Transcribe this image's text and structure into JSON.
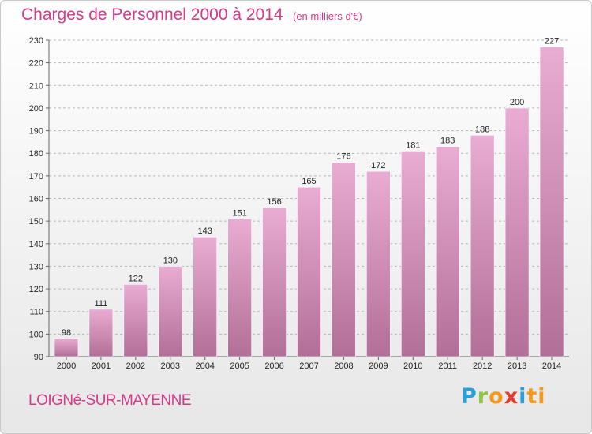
{
  "header": {
    "title": "Charges de Personnel 2000 à 2014",
    "subtitle": "(en milliers d'€)"
  },
  "footer": {
    "place": "LOIGNé-SUR-MAYENNE",
    "logo": {
      "p1": "P",
      "p2": "r",
      "p3": "o",
      "p4": "x",
      "p5": "i",
      "p6": "ti"
    }
  },
  "colors": {
    "bar_light": "#e9acd2",
    "bar_dark": "#b26f98",
    "title": "#d43a8a"
  },
  "chart_data": {
    "type": "bar",
    "title": "Charges de Personnel 2000 à 2014",
    "subtitle": "(en milliers d'€)",
    "categories": [
      "2000",
      "2001",
      "2002",
      "2003",
      "2004",
      "2005",
      "2006",
      "2007",
      "2008",
      "2009",
      "2010",
      "2011",
      "2012",
      "2013",
      "2014"
    ],
    "values": [
      98,
      111,
      122,
      130,
      143,
      151,
      156,
      165,
      176,
      172,
      181,
      183,
      188,
      200,
      227
    ],
    "ylim": [
      90,
      230
    ],
    "yticks": [
      90,
      100,
      110,
      120,
      130,
      140,
      150,
      160,
      170,
      180,
      190,
      200,
      210,
      220,
      230
    ],
    "grid": true,
    "data_labels": true
  }
}
